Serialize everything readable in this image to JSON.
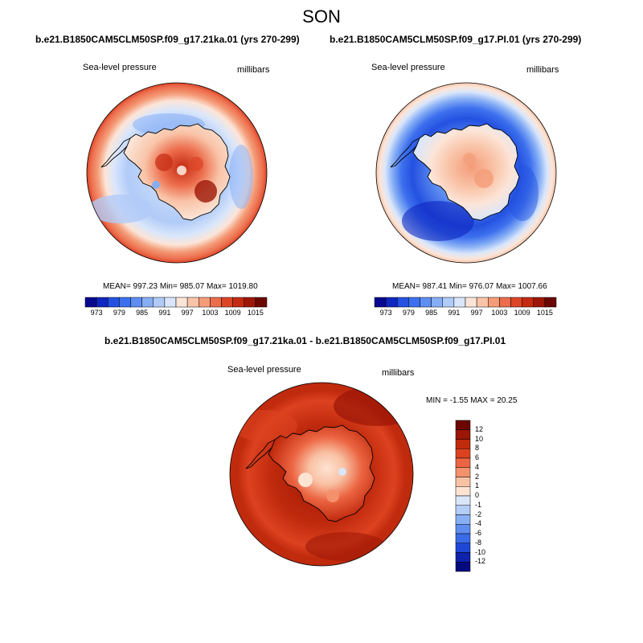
{
  "figure": {
    "title": "SON"
  },
  "panels": [
    {
      "id": "case",
      "title": "b.e21.B1850CAM5CLM50SP.f09_g17.21ka.01 (yrs 270-299)",
      "variable": "Sea-level pressure",
      "units": "millibars",
      "stats": "MEAN= 997.23  Min= 985.07  Max= 1019.80",
      "colorbar": {
        "ticks": [
          "973",
          "979",
          "985",
          "991",
          "997",
          "1003",
          "1009",
          "1015"
        ]
      }
    },
    {
      "id": "control",
      "title": "b.e21.B1850CAM5CLM50SP.f09_g17.PI.01 (yrs 270-299)",
      "variable": "Sea-level pressure",
      "units": "millibars",
      "stats": "MEAN= 987.41  Min= 976.07  Max= 1007.66",
      "colorbar": {
        "ticks": [
          "973",
          "979",
          "985",
          "991",
          "997",
          "1003",
          "1009",
          "1015"
        ]
      }
    },
    {
      "id": "difference",
      "title": "b.e21.B1850CAM5CLM50SP.f09_g17.21ka.01 - b.e21.B1850CAM5CLM50SP.f09_g17.PI.01",
      "variable": "Sea-level pressure",
      "units": "millibars",
      "stats": "MIN =  -1.55 MAX =  20.25",
      "colorbar": {
        "ticks": [
          "12",
          "10",
          "8",
          "6",
          "4",
          "2",
          "1",
          "0",
          "-1",
          "-2",
          "-4",
          "-6",
          "-8",
          "-10",
          "-12"
        ]
      }
    }
  ],
  "colors": {
    "abs_scale": [
      "#08088f",
      "#0f26bf",
      "#2451e0",
      "#3d70ee",
      "#5e8ef2",
      "#86aef5",
      "#b1cbf8",
      "#d9e6fb",
      "#fce5d8",
      "#f9c4a8",
      "#f49c78",
      "#ec6d4c",
      "#dd4527",
      "#c42b12",
      "#9e1608",
      "#6b0602"
    ],
    "diff_scale": [
      "#6b0602",
      "#9a1606",
      "#c02a0d",
      "#dc4220",
      "#ec6542",
      "#f4916d",
      "#f9c1a4",
      "#fde3d2",
      "#dae7fb",
      "#b4cdf7",
      "#88aff3",
      "#5f8ef0",
      "#3a6be8",
      "#1f47d6",
      "#0e22ac",
      "#060a80"
    ]
  }
}
